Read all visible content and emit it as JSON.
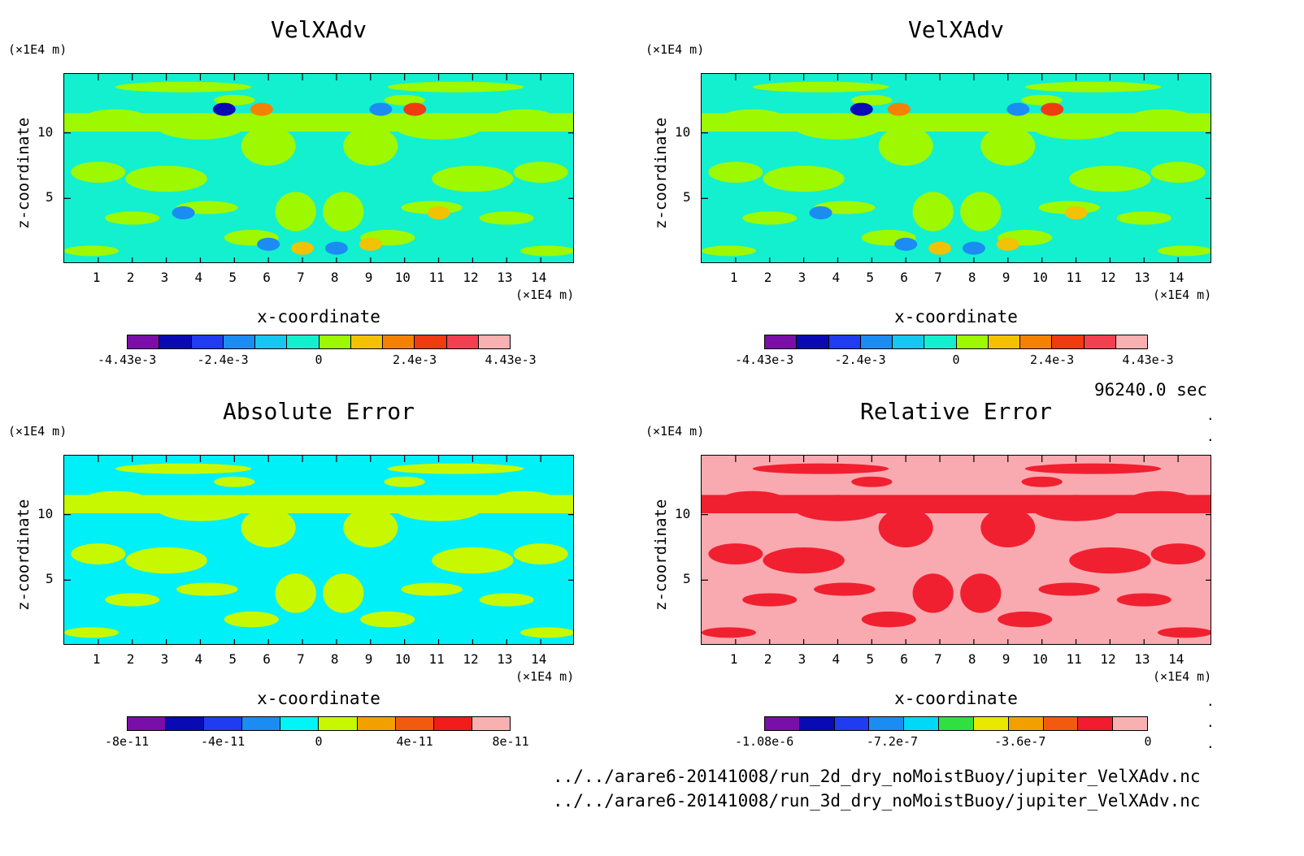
{
  "panels": [
    {
      "title": "VelXAdv",
      "z_unit": "(×1E4 m)",
      "x_unit": "(×1E4 m)",
      "ylabel": "z-coordinate",
      "xlabel": "x-coordinate",
      "colorbar": {
        "colors": [
          "#7a0ea8",
          "#0a0ab4",
          "#1f3cf0",
          "#1b8cf2",
          "#14c8f2",
          "#12f0d0",
          "#9ef800",
          "#f2c200",
          "#f48200",
          "#f03a10",
          "#f24050",
          "#f8b0b0"
        ],
        "labels": [
          "-4.43e-3",
          "-2.4e-3",
          "0",
          "2.4e-3",
          "4.43e-3"
        ]
      },
      "bg": "#12f0d0",
      "fg": "#9ef800"
    },
    {
      "title": "VelXAdv",
      "z_unit": "(×1E4 m)",
      "x_unit": "(×1E4 m)",
      "ylabel": "z-coordinate",
      "xlabel": "x-coordinate",
      "colorbar": {
        "colors": [
          "#7a0ea8",
          "#0a0ab4",
          "#1f3cf0",
          "#1b8cf2",
          "#14c8f2",
          "#12f0d0",
          "#9ef800",
          "#f2c200",
          "#f48200",
          "#f03a10",
          "#f24050",
          "#f8b0b0"
        ],
        "labels": [
          "-4.43e-3",
          "-2.4e-3",
          "0",
          "2.4e-3",
          "4.43e-3"
        ]
      },
      "bg": "#12f0d0",
      "fg": "#9ef800"
    },
    {
      "title": "Absolute Error",
      "z_unit": "(×1E4 m)",
      "x_unit": "(×1E4 m)",
      "ylabel": "z-coordinate",
      "xlabel": "x-coordinate",
      "colorbar": {
        "colors": [
          "#7a0ea8",
          "#0a0ab4",
          "#1f3cf0",
          "#1b8cf2",
          "#00f4f8",
          "#c8f800",
          "#f2a000",
          "#f25a10",
          "#f21c1c",
          "#f8b0b0"
        ],
        "labels": [
          "-8e-11",
          "-4e-11",
          "0",
          "4e-11",
          "8e-11"
        ]
      },
      "bg": "#00f0f8",
      "fg": "#c8f800"
    },
    {
      "title": "Relative Error",
      "z_unit": "(×1E4 m)",
      "x_unit": "(×1E4 m)",
      "ylabel": "z-coordinate",
      "xlabel": "x-coordinate",
      "colorbar": {
        "colors": [
          "#7a0ea8",
          "#0a0ab4",
          "#1f3cf0",
          "#1b8cf2",
          "#00d8f8",
          "#30e040",
          "#e8e800",
          "#f2a000",
          "#f25a10",
          "#f21c30",
          "#f8b0b0"
        ],
        "labels": [
          "-1.08e-6",
          "-7.2e-7",
          "-3.6e-7",
          "0"
        ]
      },
      "bg": "#f8aab0",
      "fg": "#f02030"
    }
  ],
  "x_ticks": [
    "1",
    "2",
    "3",
    "4",
    "5",
    "6",
    "7",
    "8",
    "9",
    "10",
    "11",
    "12",
    "13",
    "14"
  ],
  "z_ticks": [
    "5",
    "10"
  ],
  "time_label": "96240.0 sec",
  "files": [
    "../../arare6-20141008/run_2d_dry_noMoistBuoy/jupiter_VelXAdv.nc",
    "../../arare6-20141008/run_3d_dry_noMoistBuoy/jupiter_VelXAdv.nc"
  ],
  "chart_data": [
    {
      "type": "heatmap",
      "title": "VelXAdv",
      "xlabel": "x-coordinate",
      "ylabel": "z-coordinate",
      "x_unit": "(×1E4 m)",
      "z_unit": "(×1E4 m)",
      "xlim": [
        0,
        15
      ],
      "zlim": [
        0,
        14.5
      ],
      "colorbar_labels": [
        "-4.43e-3",
        "-2.4e-3",
        "0",
        "2.4e-3",
        "4.43e-3"
      ]
    },
    {
      "type": "heatmap",
      "title": "VelXAdv",
      "xlabel": "x-coordinate",
      "ylabel": "z-coordinate",
      "x_unit": "(×1E4 m)",
      "z_unit": "(×1E4 m)",
      "xlim": [
        0,
        15
      ],
      "zlim": [
        0,
        14.5
      ],
      "colorbar_labels": [
        "-4.43e-3",
        "-2.4e-3",
        "0",
        "2.4e-3",
        "4.43e-3"
      ]
    },
    {
      "type": "heatmap",
      "title": "Absolute Error",
      "xlabel": "x-coordinate",
      "ylabel": "z-coordinate",
      "x_unit": "(×1E4 m)",
      "z_unit": "(×1E4 m)",
      "xlim": [
        0,
        15
      ],
      "zlim": [
        0,
        14.5
      ],
      "colorbar_labels": [
        "-8e-11",
        "-4e-11",
        "0",
        "4e-11",
        "8e-11"
      ]
    },
    {
      "type": "heatmap",
      "title": "Relative Error",
      "xlabel": "x-coordinate",
      "ylabel": "z-coordinate",
      "x_unit": "(×1E4 m)",
      "z_unit": "(×1E4 m)",
      "xlim": [
        0,
        15
      ],
      "zlim": [
        0,
        14.5
      ],
      "colorbar_labels": [
        "-1.08e-6",
        "-7.2e-7",
        "-3.6e-7",
        "0"
      ]
    }
  ]
}
